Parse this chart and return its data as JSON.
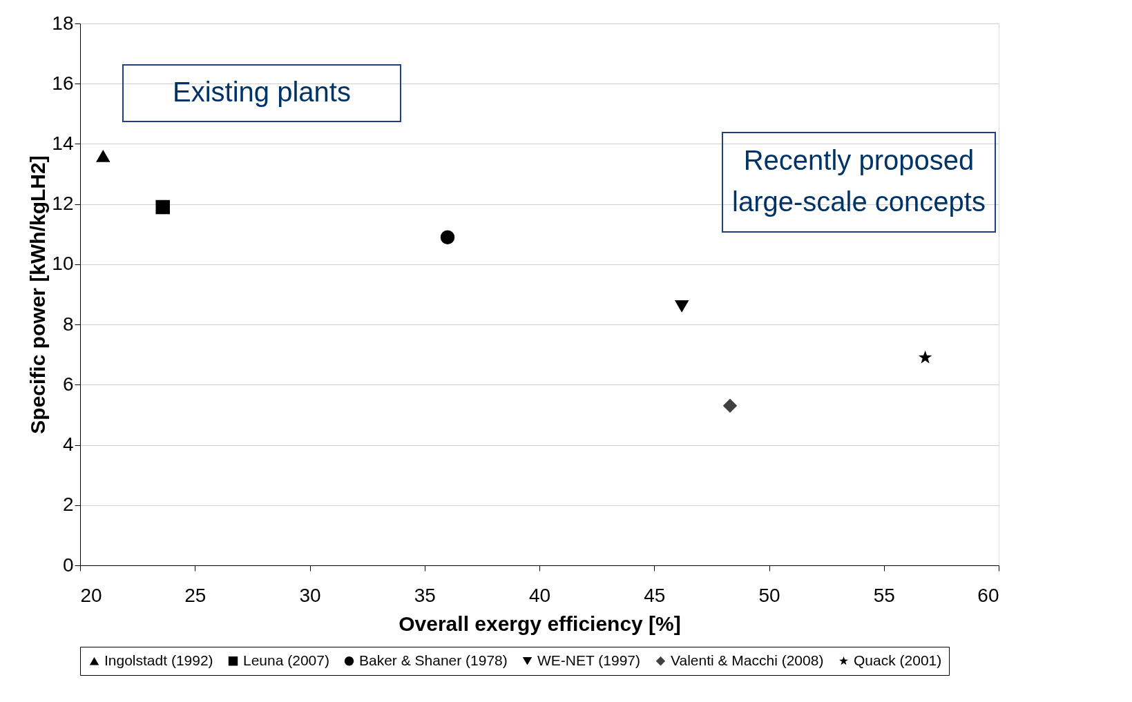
{
  "chart_data": {
    "type": "scatter",
    "xlabel": "Overall exergy efficiency [%]",
    "ylabel": "Specific power [kWh/kgLH2]",
    "xlim": [
      20,
      60
    ],
    "xticks": [
      20,
      25,
      30,
      35,
      40,
      45,
      50,
      55,
      60
    ],
    "ylim": [
      0,
      18
    ],
    "yticks": [
      0,
      2,
      4,
      6,
      8,
      10,
      12,
      14,
      16,
      18
    ],
    "grid": "y",
    "legend": "bottom",
    "annotations": [
      "Existing plants",
      "Recently proposed large-scale concepts"
    ],
    "series": [
      {
        "name": "Ingolstadt (1992)",
        "color": "#000000",
        "marker": "triangle",
        "x": [
          21.0
        ],
        "values": [
          13.6
        ]
      },
      {
        "name": "Leuna (2007)",
        "color": "#000000",
        "marker": "square",
        "x": [
          23.6
        ],
        "values": [
          11.9
        ]
      },
      {
        "name": "Baker & Shaner (1978)",
        "color": "#000000",
        "marker": "circle",
        "x": [
          36.0
        ],
        "values": [
          10.9
        ]
      },
      {
        "name": "WE-NET (1997)",
        "color": "#000000",
        "marker": "triangle-down",
        "x": [
          46.2
        ],
        "values": [
          8.6
        ]
      },
      {
        "name": "Valenti & Macchi (2008)",
        "color": "#404040",
        "marker": "diamond",
        "x": [
          48.3
        ],
        "values": [
          5.3
        ]
      },
      {
        "name": "Quack (2001)",
        "color": "#000000",
        "marker": "star",
        "x": [
          56.8
        ],
        "values": [
          6.9
        ]
      }
    ]
  }
}
